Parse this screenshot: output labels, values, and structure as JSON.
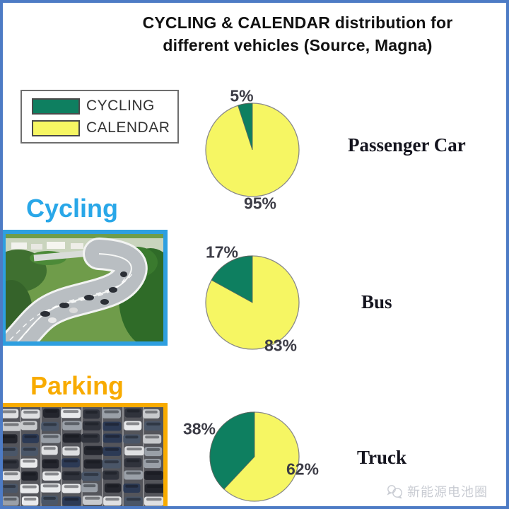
{
  "page": {
    "background": "#ffffff",
    "frame_color": "#4d7bc5"
  },
  "title": {
    "line1": "CYCLING & CALENDAR distribution for",
    "line2": "different vehicles (Source, Magna)"
  },
  "legend": {
    "items": [
      {
        "label": "CYCLING",
        "color": "#0e7f60"
      },
      {
        "label": "CALENDAR",
        "color": "#f6f663"
      }
    ]
  },
  "sections": {
    "cycling_label": "Cycling",
    "cycling_color": "#29a7e8",
    "parking_label": "Parking",
    "parking_color": "#f8ab00"
  },
  "watermark": {
    "icon": "wechat-icon",
    "text": "新能源电池圈",
    "color": "#c9ccd3"
  },
  "chart_data": [
    {
      "type": "pie",
      "title": "Passenger Car",
      "labels": [
        "CYCLING",
        "CALENDAR"
      ],
      "values": [
        5,
        95
      ],
      "value_labels": [
        "5%",
        "95%"
      ],
      "colors": [
        "#0e7f60",
        "#f6f663"
      ],
      "start_angle": "12-oclock",
      "direction": "counterclockwise"
    },
    {
      "type": "pie",
      "title": "Bus",
      "labels": [
        "CYCLING",
        "CALENDAR"
      ],
      "values": [
        17,
        83
      ],
      "value_labels": [
        "17%",
        "83%"
      ],
      "colors": [
        "#0e7f60",
        "#f6f663"
      ],
      "start_angle": "12-oclock",
      "direction": "counterclockwise"
    },
    {
      "type": "pie",
      "title": "Truck",
      "labels": [
        "CYCLING",
        "CALENDAR"
      ],
      "values": [
        38,
        62
      ],
      "value_labels": [
        "38%",
        "62%"
      ],
      "colors": [
        "#0e7f60",
        "#f6f663"
      ],
      "start_angle": "12-oclock",
      "direction": "counterclockwise"
    }
  ]
}
